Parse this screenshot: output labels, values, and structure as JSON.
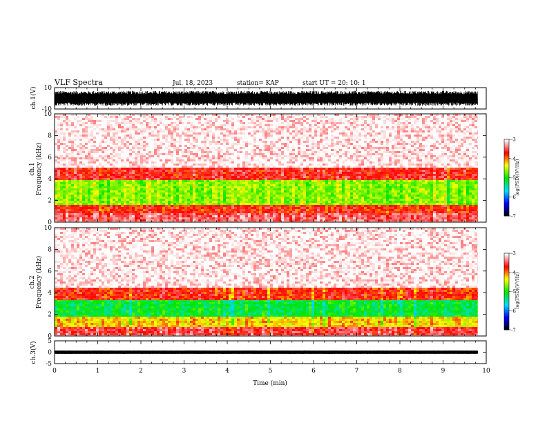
{
  "header": {
    "title": "VLF Spectra",
    "date": "Jul. 18, 2023",
    "station": "station= KAP",
    "start": "start  UT =   20: 10: 1"
  },
  "chart_data": [
    {
      "type": "line",
      "panel": "ch1-waveform",
      "ylabel": "ch.1(V)",
      "ylim": [
        -10,
        10
      ],
      "yticks": [
        {
          "v": 10,
          "label": "10"
        },
        {
          "v": -10,
          "label": "-10"
        }
      ],
      "xlim": [
        0,
        10
      ],
      "trace_mean_v": 0,
      "trace_amplitude_v": 7,
      "trace_end_min": 9.8
    },
    {
      "type": "heatmap",
      "panel": "ch1-spectrogram",
      "ylabel": "Frequency (kHz)",
      "ylabel_ch": "ch.1",
      "ylim": [
        0,
        10
      ],
      "yticks": [
        {
          "v": 0,
          "label": "0"
        },
        {
          "v": 2,
          "label": "2"
        },
        {
          "v": 4,
          "label": "4"
        },
        {
          "v": 6,
          "label": "6"
        },
        {
          "v": 8,
          "label": "8"
        },
        {
          "v": 10,
          "label": "10"
        }
      ],
      "xlim": [
        0,
        10
      ],
      "data_end_min": 9.8,
      "bands_khz": [
        {
          "from": 0.0,
          "to": 0.8,
          "level": -3.4
        },
        {
          "from": 0.8,
          "to": 1.6,
          "level": -3.7
        },
        {
          "from": 1.6,
          "to": 3.8,
          "level": -4.6
        },
        {
          "from": 3.8,
          "to": 5.0,
          "level": -3.6
        },
        {
          "from": 5.0,
          "to": 10.0,
          "level": -3.1
        }
      ],
      "colorbar": {
        "label": "log(PSD)(V²/Hz)",
        "range": [
          -7,
          -3
        ],
        "ticks": [
          {
            "v": -3,
            "label": "-3"
          },
          {
            "v": -4,
            "label": "-4"
          },
          {
            "v": -5,
            "label": "-5"
          },
          {
            "v": -6,
            "label": "-6"
          },
          {
            "v": -7,
            "label": "-7"
          }
        ]
      }
    },
    {
      "type": "heatmap",
      "panel": "ch2-spectrogram",
      "ylabel": "Frequency (kHz)",
      "ylabel_ch": "ch.2",
      "ylim": [
        0,
        10
      ],
      "yticks": [
        {
          "v": 0,
          "label": "0"
        },
        {
          "v": 2,
          "label": "2"
        },
        {
          "v": 4,
          "label": "4"
        },
        {
          "v": 6,
          "label": "6"
        },
        {
          "v": 8,
          "label": "8"
        },
        {
          "v": 10,
          "label": "10"
        }
      ],
      "xlim": [
        0,
        10
      ],
      "data_end_min": 9.8,
      "bands_khz": [
        {
          "from": 0.0,
          "to": 0.8,
          "level": -3.5
        },
        {
          "from": 0.8,
          "to": 1.7,
          "level": -4.2
        },
        {
          "from": 1.7,
          "to": 3.3,
          "level": -5.1
        },
        {
          "from": 3.3,
          "to": 4.4,
          "level": -3.7
        },
        {
          "from": 4.4,
          "to": 10.0,
          "level": -3.1
        }
      ],
      "colorbar": {
        "label": "log(PSD)(V²/Hz)",
        "range": [
          -7,
          -3
        ],
        "ticks": [
          {
            "v": -3,
            "label": "-3"
          },
          {
            "v": -4,
            "label": "-4"
          },
          {
            "v": -5,
            "label": "-5"
          },
          {
            "v": -6,
            "label": "-6"
          },
          {
            "v": -7,
            "label": "-7"
          }
        ]
      }
    },
    {
      "type": "line",
      "panel": "ch3-waveform",
      "ylabel": "ch.3(V)",
      "ylim": [
        -5,
        5
      ],
      "yticks": [
        {
          "v": 5,
          "label": "5"
        },
        {
          "v": 0,
          "label": "0"
        },
        {
          "v": -5,
          "label": "-5"
        }
      ],
      "xlim": [
        0,
        10
      ],
      "trace_mean_v": 0,
      "trace_amplitude_v": 0.7,
      "trace_end_min": 9.8,
      "xlabel": "Time (min)",
      "xticks": [
        {
          "v": 0,
          "label": "0"
        },
        {
          "v": 1,
          "label": "1"
        },
        {
          "v": 2,
          "label": "2"
        },
        {
          "v": 3,
          "label": "3"
        },
        {
          "v": 4,
          "label": "4"
        },
        {
          "v": 5,
          "label": "5"
        },
        {
          "v": 6,
          "label": "6"
        },
        {
          "v": 7,
          "label": "7"
        },
        {
          "v": 8,
          "label": "8"
        },
        {
          "v": 9,
          "label": "9"
        },
        {
          "v": 10,
          "label": "10"
        }
      ]
    }
  ]
}
